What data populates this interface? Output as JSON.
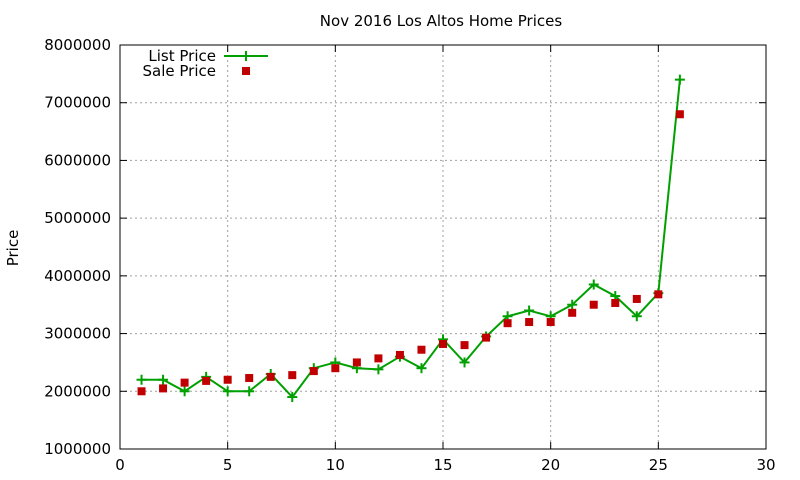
{
  "chart_data": {
    "type": "line",
    "title": "Nov 2016 Los Altos Home Prices",
    "xlabel": "",
    "ylabel": "Price",
    "xlim": [
      0,
      30
    ],
    "ylim": [
      1000000,
      8000000
    ],
    "xticks": [
      0,
      5,
      10,
      15,
      20,
      25,
      30
    ],
    "yticks": [
      1000000,
      2000000,
      3000000,
      4000000,
      5000000,
      6000000,
      7000000,
      8000000
    ],
    "grid": true,
    "legend_position": "top-left",
    "series": [
      {
        "name": "List Price",
        "style": "line-points",
        "color": "#00a000",
        "x": [
          1,
          2,
          3,
          4,
          5,
          6,
          7,
          8,
          9,
          10,
          11,
          12,
          13,
          14,
          15,
          16,
          17,
          18,
          19,
          20,
          21,
          22,
          23,
          24,
          25,
          26
        ],
        "values": [
          2200000,
          2200000,
          2000000,
          2250000,
          2000000,
          2000000,
          2300000,
          1900000,
          2400000,
          2500000,
          2400000,
          2380000,
          2600000,
          2400000,
          2900000,
          2500000,
          2950000,
          3300000,
          3400000,
          3300000,
          3500000,
          3850000,
          3650000,
          3300000,
          3700000,
          7400000
        ]
      },
      {
        "name": "Sale Price",
        "style": "points",
        "color": "#c00000",
        "x": [
          1,
          2,
          3,
          4,
          5,
          6,
          7,
          8,
          9,
          10,
          11,
          12,
          13,
          14,
          15,
          16,
          17,
          18,
          19,
          20,
          21,
          22,
          23,
          24,
          25,
          26
        ],
        "values": [
          2000000,
          2050000,
          2150000,
          2180000,
          2200000,
          2230000,
          2250000,
          2280000,
          2350000,
          2400000,
          2500000,
          2570000,
          2630000,
          2720000,
          2820000,
          2800000,
          2930000,
          3180000,
          3200000,
          3200000,
          3360000,
          3500000,
          3530000,
          3600000,
          3680000,
          6800000
        ]
      }
    ]
  }
}
